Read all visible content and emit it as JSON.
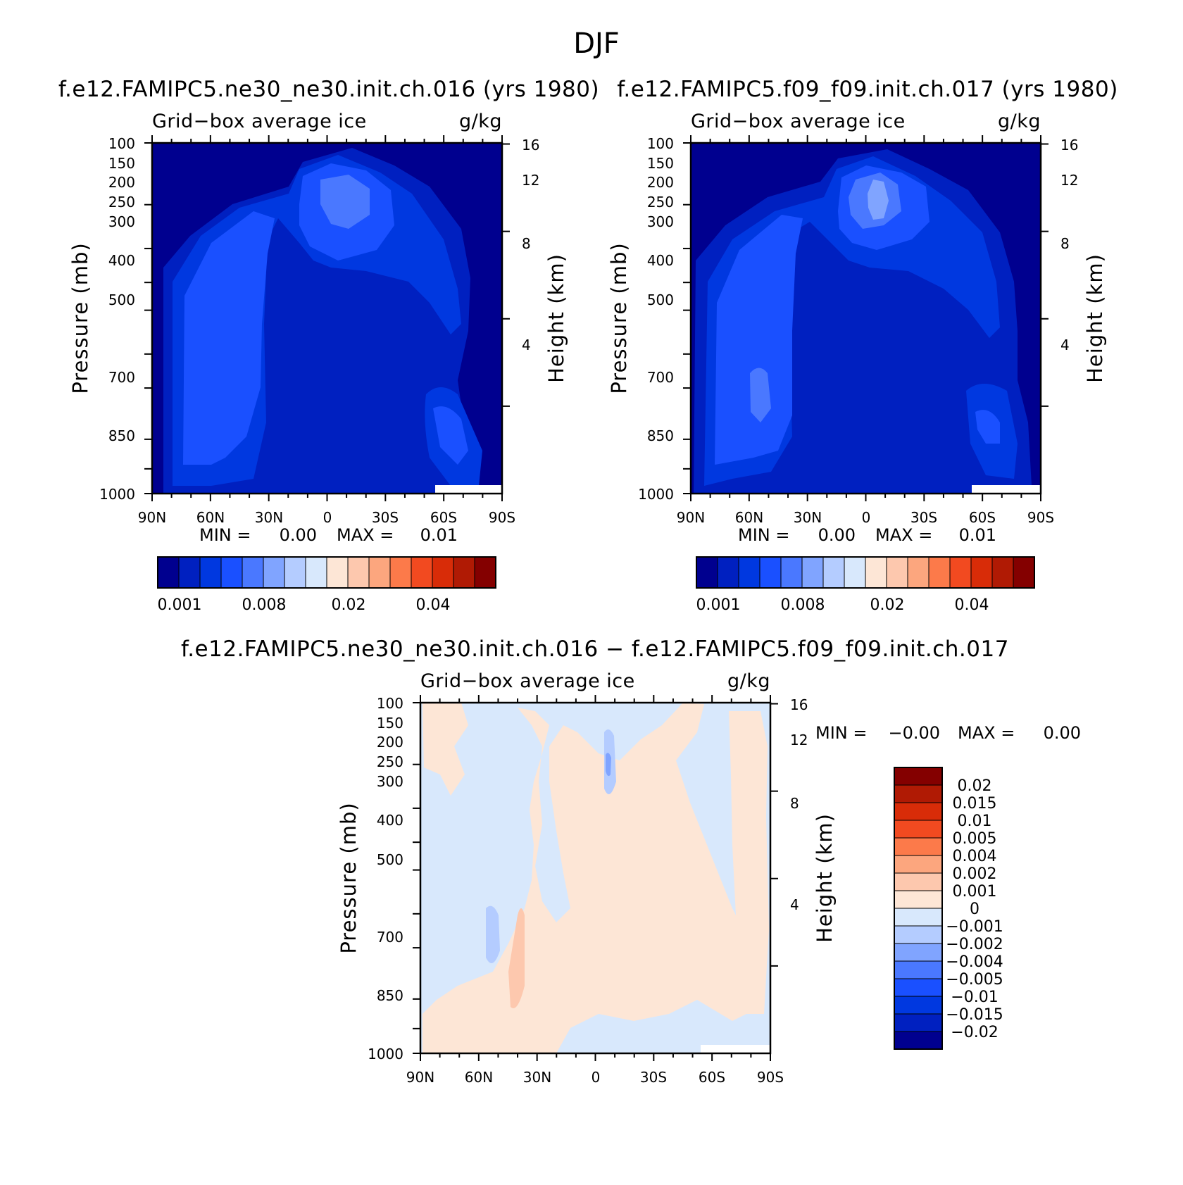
{
  "chart_data": {
    "title": "DJF",
    "panels": [
      {
        "type": "heatmap",
        "title": "f.e12.FAMIPC5.ne30_ne30.init.ch.016 (yrs 1980)",
        "left_label": "Grid-box average ice",
        "right_label": "g/kg",
        "ylabel": "Pressure (mb)",
        "ylabel_right": "Height (km)",
        "x_ticks": [
          "90N",
          "60N",
          "30N",
          "0",
          "30S",
          "60S",
          "90S"
        ],
        "y_ticks": [
          "100",
          "150",
          "200",
          "250",
          "300",
          "400",
          "500",
          "700",
          "850",
          "1000"
        ],
        "y_ticks_right": [
          "16",
          "12",
          "8",
          "4"
        ],
        "min_label": "MIN =",
        "min_value": "0.00",
        "max_label": "MAX =",
        "max_value": "0.01",
        "colorbar_labels": [
          "0.001",
          "0.008",
          "0.02",
          "0.04"
        ],
        "colorbar_colors": [
          "#00008f",
          "#0020c0",
          "#0038e0",
          "#1a50ff",
          "#4a78ff",
          "#80a4ff",
          "#b4ccff",
          "#d8e8fc",
          "#fde6d6",
          "#fdc8ae",
          "#fca67e",
          "#fc7a4a",
          "#f24a20",
          "#d82c08",
          "#b01a04",
          "#840000"
        ],
        "background_color": "#00008f",
        "fill_colors": [
          "#0020c0",
          "#0038e0",
          "#1a50ff",
          "#4a78ff",
          "#80a4ff"
        ]
      },
      {
        "type": "heatmap",
        "title": "f.e12.FAMIPC5.f09_f09.init.ch.017 (yrs 1980)",
        "left_label": "Grid-box average ice",
        "right_label": "g/kg",
        "ylabel": "Pressure (mb)",
        "ylabel_right": "Height (km)",
        "x_ticks": [
          "90N",
          "60N",
          "30N",
          "0",
          "30S",
          "60S",
          "90S"
        ],
        "y_ticks": [
          "100",
          "150",
          "200",
          "250",
          "300",
          "400",
          "500",
          "700",
          "850",
          "1000"
        ],
        "y_ticks_right": [
          "16",
          "12",
          "8",
          "4"
        ],
        "min_label": "MIN =",
        "min_value": "0.00",
        "max_label": "MAX =",
        "max_value": "0.01",
        "colorbar_labels": [
          "0.001",
          "0.008",
          "0.02",
          "0.04"
        ],
        "colorbar_colors": [
          "#00008f",
          "#0020c0",
          "#0038e0",
          "#1a50ff",
          "#4a78ff",
          "#80a4ff",
          "#b4ccff",
          "#d8e8fc",
          "#fde6d6",
          "#fdc8ae",
          "#fca67e",
          "#fc7a4a",
          "#f24a20",
          "#d82c08",
          "#b01a04",
          "#840000"
        ],
        "background_color": "#00008f",
        "fill_colors": [
          "#0020c0",
          "#0038e0",
          "#1a50ff",
          "#4a78ff",
          "#80a4ff",
          "#b4ccff"
        ]
      },
      {
        "type": "heatmap",
        "title": "f.e12.FAMIPC5.ne30_ne30.init.ch.016 - f.e12.FAMIPC5.f09_f09.init.ch.017",
        "left_label": "Grid-box average ice",
        "right_label": "g/kg",
        "ylabel": "Pressure (mb)",
        "ylabel_right": "Height (km)",
        "x_ticks": [
          "90N",
          "60N",
          "30N",
          "0",
          "30S",
          "60S",
          "90S"
        ],
        "y_ticks": [
          "100",
          "150",
          "200",
          "250",
          "300",
          "400",
          "500",
          "700",
          "850",
          "1000"
        ],
        "y_ticks_right": [
          "16",
          "12",
          "8",
          "4"
        ],
        "min_label": "MIN =",
        "min_value": "-0.00",
        "max_label": "MAX =",
        "max_value": "0.00",
        "colorbar_labels": [
          "0.02",
          "0.015",
          "0.01",
          "0.005",
          "0.004",
          "0.002",
          "0.001",
          "0",
          "-0.001",
          "-0.002",
          "-0.004",
          "-0.005",
          "-0.01",
          "-0.015",
          "-0.02"
        ],
        "colorbar_colors": [
          "#840000",
          "#b01a04",
          "#d82c08",
          "#f24a20",
          "#fc7a4a",
          "#fca67e",
          "#fdc8ae",
          "#fde6d6",
          "#d8e8fc",
          "#b4ccff",
          "#80a4ff",
          "#4a78ff",
          "#1a50ff",
          "#0038e0",
          "#0020c0",
          "#00008f"
        ],
        "background_color": "#d8e8fc",
        "fill_colors": [
          "#fde6d6",
          "#fdc8ae",
          "#b4ccff",
          "#80a4ff"
        ]
      }
    ]
  }
}
